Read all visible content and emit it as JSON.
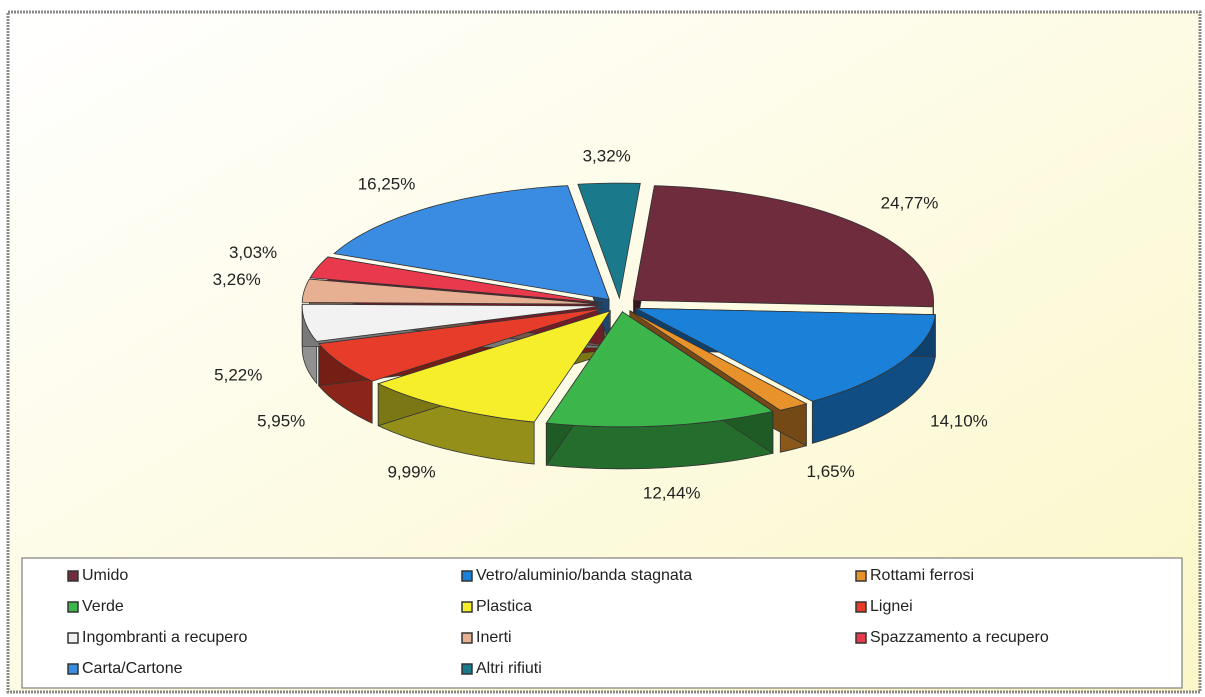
{
  "chart_data": {
    "type": "pie",
    "categories": [
      "Umido",
      "Vetro/aluminio/banda stagnata",
      "Rottami ferrosi",
      "Verde",
      "Plastica",
      "Lignei",
      "Ingombranti a recupero",
      "Inerti",
      "Spazzamento a recupero",
      "Carta/Cartone",
      "Altri rifiuti"
    ],
    "values": [
      24.77,
      14.1,
      1.65,
      12.44,
      9.99,
      5.95,
      5.22,
      3.26,
      3.03,
      16.25,
      3.32
    ],
    "value_labels": [
      "24,77%",
      "14,10%",
      "1,65%",
      "12,44%",
      "9,99%",
      "5,95%",
      "5,22%",
      "3,26%",
      "3,03%",
      "16,25%",
      "3,32%"
    ],
    "colors": [
      "#6e2c3c",
      "#1a80d8",
      "#e8922c",
      "#3cb54a",
      "#f6ee2a",
      "#e83c2a",
      "#f2f2f2",
      "#e8b092",
      "#e83a4c",
      "#3a8ce2",
      "#1a7a8c"
    ]
  }
}
